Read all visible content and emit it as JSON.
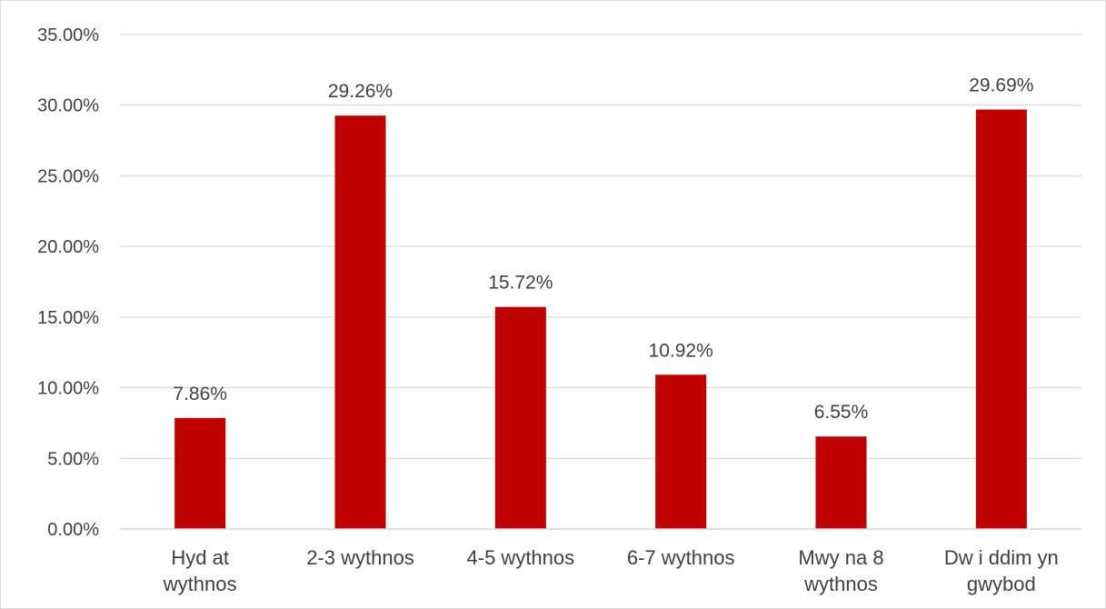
{
  "chart_data": {
    "type": "bar",
    "title": "",
    "categories": [
      [
        "Hyd at",
        "wythnos"
      ],
      [
        "2-3 wythnos"
      ],
      [
        "4-5 wythnos"
      ],
      [
        "6-7 wythnos"
      ],
      [
        "Mwy na 8",
        "wythnos"
      ],
      [
        "Dw i ddim yn",
        "gwybod"
      ]
    ],
    "values": [
      7.86,
      29.26,
      15.72,
      10.92,
      6.55,
      29.69
    ],
    "data_labels": [
      "7.86%",
      "29.26%",
      "15.72%",
      "10.92%",
      "6.55%",
      "29.69%"
    ],
    "y_ticks": [
      "0.00%",
      "5.00%",
      "10.00%",
      "15.00%",
      "20.00%",
      "25.00%",
      "30.00%",
      "35.00%"
    ],
    "ylim": [
      0,
      35
    ],
    "xlabel": "",
    "ylabel": "",
    "grid": true,
    "legend": "none",
    "bar_color": "#c00000",
    "grid_color": "#d9d9d9"
  }
}
